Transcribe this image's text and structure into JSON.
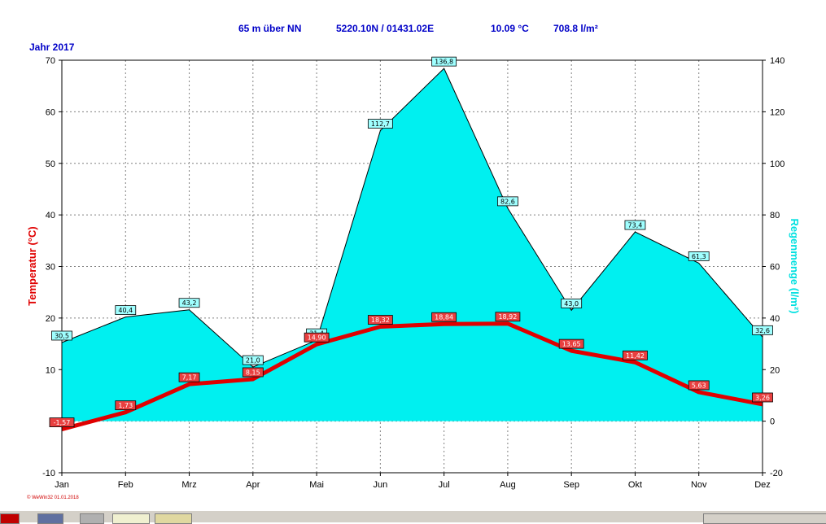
{
  "header": {
    "elevation": "65 m über NN",
    "coords": "5220.10N / 01431.02E",
    "mean_temp": "10.09 °C",
    "rain_sum": "708.8 l/m²",
    "year": "Jahr 2017"
  },
  "credit": "© WeWin32 01.01.2018",
  "colors": {
    "temp_line": "#e00000",
    "rain_fill": "#00f0f0",
    "header_text": "#0000c8",
    "rain_axis_text": "#00e0e0"
  },
  "chart_data": {
    "type": "line",
    "categories": [
      "Jan",
      "Feb",
      "Mrz",
      "Apr",
      "Mai",
      "Jun",
      "Jul",
      "Aug",
      "Sep",
      "Okt",
      "Nov",
      "Dez"
    ],
    "ylabel_left": "Temperatur (°C)",
    "ylabel_right": "Regenmenge (l/m²)",
    "ylim_left": [
      -10,
      70
    ],
    "ylim_right": [
      -20,
      140
    ],
    "yticks_left": [
      -10,
      0,
      10,
      20,
      30,
      40,
      50,
      60,
      70
    ],
    "yticks_right": [
      -20,
      0,
      20,
      40,
      60,
      80,
      100,
      120,
      140
    ],
    "grid": true,
    "series": [
      {
        "name": "Temperatur",
        "axis": "left",
        "type": "line",
        "values": [
          -1.57,
          1.73,
          7.17,
          8.15,
          14.9,
          18.32,
          18.84,
          18.92,
          13.65,
          11.42,
          5.63,
          3.26
        ],
        "labels": [
          "-1,57",
          "1,73",
          "7,17",
          "8,15",
          "14,90",
          "18,32",
          "18,84",
          "18,92",
          "13,65",
          "11,42",
          "5,63",
          "3,26"
        ]
      },
      {
        "name": "Regenmenge",
        "axis": "right",
        "type": "area",
        "values": [
          30.5,
          40.4,
          43.2,
          21.0,
          31.4,
          112.7,
          136.8,
          82.6,
          43.0,
          73.4,
          61.3,
          32.6
        ],
        "labels": [
          "30,5",
          "40,4",
          "43,2",
          "21,0",
          "31,4",
          "112,7",
          "136,8",
          "82,6",
          "43,0",
          "73,4",
          "61,3",
          "32,6"
        ]
      }
    ]
  }
}
